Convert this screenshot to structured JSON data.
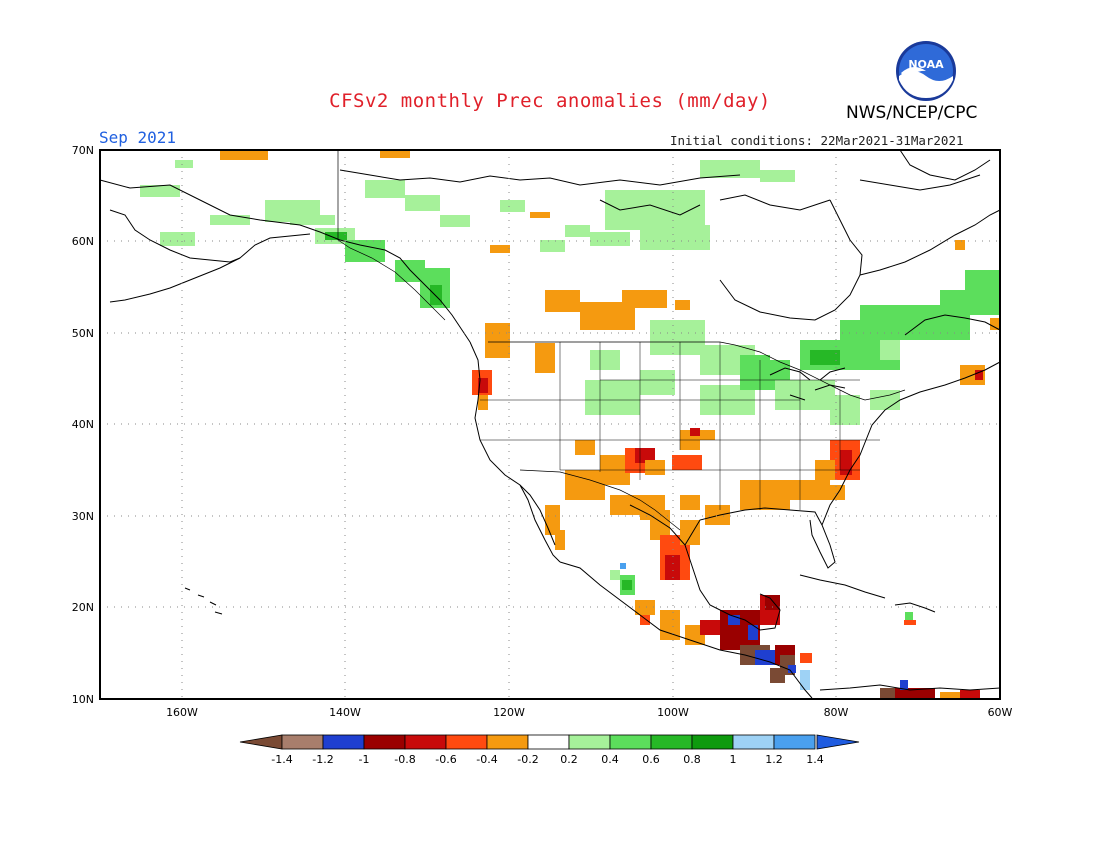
{
  "title": "CFSv2 monthly Prec anomalies (mm/day)",
  "month": "Sep 2021",
  "agency": "NWS/NCEP/CPC",
  "initial_conditions": "Initial conditions: 22Mar2021-31Mar2021",
  "logo_text": "NOAA",
  "map": {
    "lat_labels": [
      "70N",
      "60N",
      "50N",
      "40N",
      "30N",
      "20N",
      "10N"
    ],
    "lon_labels": [
      "160W",
      "140W",
      "120W",
      "100W",
      "80W",
      "60W"
    ],
    "extent": {
      "lon_min": -170,
      "lon_max": -60,
      "lat_min": 10,
      "lat_max": 70
    }
  },
  "legend": {
    "labels": [
      "-1.4",
      "-1.2",
      "-1",
      "-0.8",
      "-0.6",
      "-0.4",
      "-0.2",
      "0.2",
      "0.4",
      "0.6",
      "0.8",
      "1",
      "1.2",
      "1.4"
    ],
    "colors": [
      "#7a4a34",
      "#a87e6c",
      "#1f3fd0",
      "#9a0000",
      "#c80a0a",
      "#ff4a10",
      "#f59a10",
      "#ffffff",
      "#a6f19a",
      "#5cde5c",
      "#26b826",
      "#0e9a0e",
      "#9ed2f5",
      "#4aa0ee",
      "#1f5ce0"
    ]
  },
  "colors": {
    "title": "#e0202a",
    "month": "#2060e0"
  }
}
